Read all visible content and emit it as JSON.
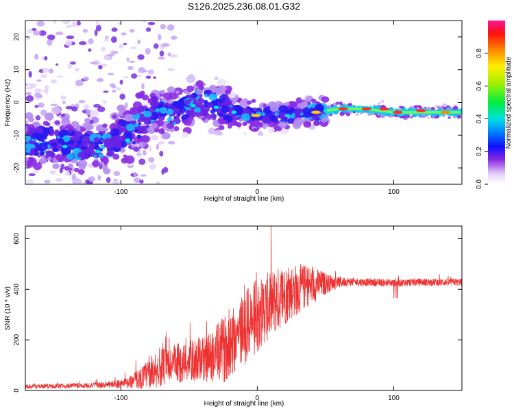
{
  "title": "S126.2025.236.08.01.G32",
  "chart_data": [
    {
      "type": "heatmap",
      "name": "spectrogram",
      "xlabel": "Height of straight line (km)",
      "ylabel": "Frequency (Hz)",
      "xlim": [
        -170,
        150
      ],
      "ylim": [
        -25,
        25
      ],
      "x_ticks": [
        -100,
        0,
        100
      ],
      "y_ticks": [
        -20,
        -10,
        0,
        10,
        20
      ],
      "colorbar": {
        "label": "Normalized spectral amplitude",
        "range": [
          0,
          1
        ],
        "ticks": [
          0.0,
          0.2,
          0.4,
          0.6,
          0.8
        ],
        "tick_labels": [
          "0.0",
          "0.2",
          "0.4",
          "0.6",
          "0.8"
        ]
      },
      "ridge": {
        "description_points_x": [
          -150,
          -130,
          -110,
          -90,
          -75,
          -60,
          -45,
          -30,
          -15,
          0,
          20,
          40,
          60,
          80,
          100,
          120,
          150
        ],
        "description_points_freq": [
          -12,
          -13,
          -13,
          -8,
          -2,
          -4,
          0,
          -1,
          -3,
          -4,
          -4,
          -3,
          -2,
          -2,
          -3,
          -3,
          -3
        ]
      }
    },
    {
      "type": "line",
      "name": "snr",
      "xlabel": "Height of straight line (km)",
      "ylabel": "SNR (10 * v/v)",
      "xlim": [
        -170,
        150
      ],
      "ylim": [
        0,
        650
      ],
      "x_ticks": [
        -100,
        0,
        100
      ],
      "y_ticks": [
        0,
        200,
        400,
        600
      ],
      "series": [
        {
          "name": "SNR",
          "color": "#ee3333",
          "envelope_x": [
            -170,
            -140,
            -110,
            -95,
            -85,
            -75,
            -65,
            -55,
            -45,
            -35,
            -25,
            -15,
            -5,
            5,
            15,
            25,
            35,
            45,
            55,
            65,
            80,
            100,
            120,
            150
          ],
          "envelope_y": [
            15,
            18,
            22,
            30,
            50,
            80,
            100,
            110,
            120,
            130,
            160,
            220,
            270,
            320,
            360,
            390,
            410,
            420,
            425,
            430,
            428,
            425,
            428,
            428
          ],
          "noise_amplitude": [
            8,
            10,
            12,
            20,
            45,
            70,
            80,
            80,
            85,
            100,
            130,
            150,
            150,
            140,
            130,
            110,
            90,
            60,
            30,
            18,
            15,
            15,
            15,
            15
          ]
        }
      ]
    }
  ]
}
